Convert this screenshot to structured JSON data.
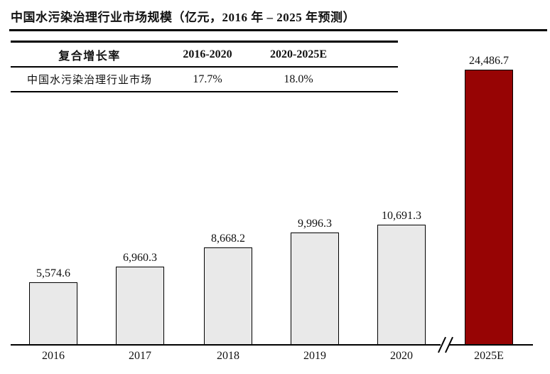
{
  "title": "中国水污染治理行业市场规模（亿元，2016 年 – 2025 年预测）",
  "table": {
    "headers": [
      "复合增长率",
      "2016-2020",
      "2020-2025E"
    ],
    "rows": [
      [
        "中国水污染治理行业市场",
        "17.7%",
        "18.0%"
      ]
    ]
  },
  "chart_data": {
    "type": "bar",
    "title": "中国水污染治理行业市场规模",
    "unit": "亿元",
    "categories": [
      "2016",
      "2017",
      "2018",
      "2019",
      "2020",
      "2025E"
    ],
    "values": [
      5574.6,
      6960.3,
      8668.2,
      9996.3,
      10691.3,
      24486.7
    ],
    "labels": [
      "5,574.6",
      "6,960.3",
      "8,668.2",
      "9,996.3",
      "10,691.3",
      "24,486.7"
    ],
    "xlabel": "",
    "ylabel": "",
    "ylim": [
      0,
      25000
    ],
    "grid": "off",
    "legend": "none",
    "axis_break_between": [
      "2020",
      "2025E"
    ],
    "highlight_category": "2025E",
    "colors": {
      "default_bar": "#e9e9e9",
      "highlight_bar": "#970404",
      "bar_border": "#000000",
      "axis": "#000000",
      "text": "#111111"
    }
  }
}
